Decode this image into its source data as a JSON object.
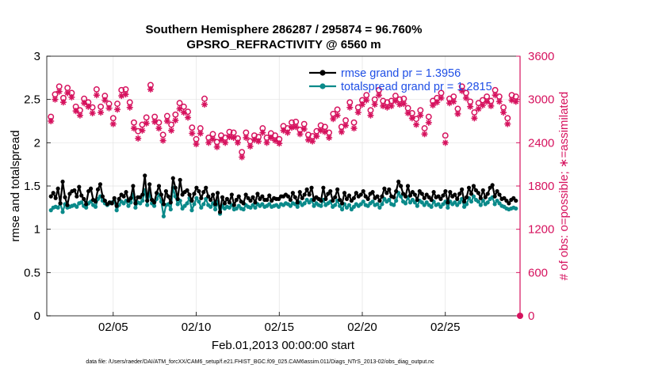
{
  "chart_data": {
    "type": "line",
    "title": "Southern Hemisphere 286287 / 295874 = 96.760%",
    "subtitle": "GPSRO_REFRACTIVITY @ 6560 m",
    "xlabel": "Feb.01,2013 00:00:00 start",
    "ylabel_left": "rmse and totalspread",
    "ylabel_right": "# of obs: o=possible; ∗=assimilated",
    "footer": "data file: /Users/raeder/DAI/ATM_forcXX/CAM6_setup/f.e21.FHIST_BGC.f09_025.CAM6assim.011/Diags_NTrS_2013-02/obs_diag_output.nc",
    "x_range_days": [
      1,
      29.5
    ],
    "x_ticks": [
      {
        "day": 5,
        "label": "02/05"
      },
      {
        "day": 10,
        "label": "02/10"
      },
      {
        "day": 15,
        "label": "02/15"
      },
      {
        "day": 20,
        "label": "02/20"
      },
      {
        "day": 25,
        "label": "02/25"
      }
    ],
    "ylim_left": [
      0,
      3
    ],
    "y_ticks_left": [
      "0",
      "0.5",
      "1",
      "1.5",
      "2",
      "2.5",
      "3"
    ],
    "ylim_right": [
      0,
      3600
    ],
    "y_ticks_right": [
      "0",
      "600",
      "1200",
      "1800",
      "2400",
      "3000",
      "3600"
    ],
    "grid": true,
    "legend_position": "top-right",
    "colors": {
      "rmse": "#000000",
      "totalspread": "#0a8a8a",
      "obs": "#d6125e",
      "legend_text": "#1f4fe6"
    },
    "series": [
      {
        "name": "rmse grand pr = 1.3956",
        "axis": "left",
        "values": [
          1.38,
          1.42,
          1.36,
          1.47,
          1.3,
          1.55,
          1.37,
          1.28,
          1.41,
          1.44,
          1.45,
          1.38,
          1.49,
          1.39,
          1.35,
          1.29,
          1.44,
          1.47,
          1.34,
          1.32,
          1.46,
          1.52,
          1.38,
          1.33,
          1.29,
          1.31,
          1.3,
          1.36,
          1.27,
          1.35,
          1.4,
          1.38,
          1.43,
          1.33,
          1.36,
          1.5,
          1.3,
          1.37,
          1.37,
          1.4,
          1.62,
          1.33,
          1.52,
          1.34,
          1.31,
          1.42,
          1.5,
          1.4,
          1.29,
          1.44,
          1.38,
          1.31,
          1.59,
          1.48,
          1.35,
          1.57,
          1.4,
          1.43,
          1.45,
          1.4,
          1.33,
          1.41,
          1.48,
          1.44,
          1.36,
          1.43,
          1.48,
          1.38,
          1.34,
          1.4,
          1.29,
          1.42,
          1.2,
          1.37,
          1.3,
          1.35,
          1.31,
          1.4,
          1.28,
          1.34,
          1.38,
          1.32,
          1.3,
          1.4,
          1.36,
          1.33,
          1.37,
          1.31,
          1.41,
          1.35,
          1.38,
          1.34,
          1.34,
          1.39,
          1.33,
          1.36,
          1.35,
          1.35,
          1.38,
          1.38,
          1.4,
          1.38,
          1.34,
          1.42,
          1.37,
          1.31,
          1.43,
          1.36,
          1.4,
          1.46,
          1.4,
          1.48,
          1.34,
          1.37,
          1.35,
          1.33,
          1.48,
          1.35,
          1.41,
          1.44,
          1.33,
          1.37,
          1.46,
          1.34,
          1.3,
          1.42,
          1.35,
          1.39,
          1.33,
          1.36,
          1.42,
          1.38,
          1.4,
          1.44,
          1.38,
          1.35,
          1.41,
          1.43,
          1.36,
          1.38,
          1.33,
          1.38,
          1.47,
          1.42,
          1.46,
          1.38,
          1.37,
          1.44,
          1.55,
          1.5,
          1.41,
          1.38,
          1.5,
          1.39,
          1.43,
          1.4,
          1.34,
          1.44,
          1.41,
          1.36,
          1.4,
          1.37,
          1.34,
          1.43,
          1.37,
          1.38,
          1.35,
          1.39,
          1.44,
          1.31,
          1.43,
          1.38,
          1.4,
          1.35,
          1.41,
          1.46,
          1.32,
          1.37,
          1.48,
          1.41,
          1.5,
          1.45,
          1.42,
          1.36,
          1.45,
          1.37,
          1.41,
          1.48,
          1.51,
          1.38,
          1.44,
          1.4,
          1.35,
          1.36,
          1.33,
          1.3,
          1.34,
          1.36,
          1.33
        ]
      },
      {
        "name": "totalspread grand pr = 1.2815",
        "axis": "left",
        "values": [
          1.22,
          1.25,
          1.26,
          1.25,
          1.3,
          1.2,
          1.29,
          1.25,
          1.26,
          1.27,
          1.28,
          1.26,
          1.3,
          1.31,
          1.27,
          1.25,
          1.3,
          1.32,
          1.28,
          1.26,
          1.35,
          1.38,
          1.33,
          1.3,
          1.28,
          1.3,
          1.31,
          1.33,
          1.22,
          1.28,
          1.32,
          1.3,
          1.33,
          1.27,
          1.31,
          1.4,
          1.25,
          1.31,
          1.3,
          1.33,
          1.45,
          1.28,
          1.42,
          1.3,
          1.27,
          1.35,
          1.4,
          1.32,
          1.15,
          1.28,
          1.29,
          1.23,
          1.48,
          1.38,
          1.29,
          1.33,
          1.24,
          1.27,
          1.3,
          1.36,
          1.22,
          1.29,
          1.36,
          1.32,
          1.25,
          1.29,
          1.35,
          1.28,
          1.26,
          1.3,
          1.23,
          1.32,
          1.18,
          1.27,
          1.24,
          1.26,
          1.25,
          1.28,
          1.23,
          1.24,
          1.27,
          1.24,
          1.23,
          1.28,
          1.26,
          1.25,
          1.28,
          1.25,
          1.29,
          1.27,
          1.29,
          1.26,
          1.27,
          1.29,
          1.26,
          1.27,
          1.28,
          1.26,
          1.29,
          1.28,
          1.3,
          1.29,
          1.27,
          1.3,
          1.29,
          1.26,
          1.31,
          1.28,
          1.3,
          1.34,
          1.31,
          1.34,
          1.27,
          1.3,
          1.28,
          1.27,
          1.34,
          1.28,
          1.3,
          1.32,
          1.26,
          1.28,
          1.33,
          1.27,
          1.23,
          1.29,
          1.25,
          1.28,
          1.23,
          1.26,
          1.29,
          1.27,
          1.29,
          1.32,
          1.28,
          1.27,
          1.3,
          1.32,
          1.28,
          1.29,
          1.25,
          1.29,
          1.35,
          1.32,
          1.34,
          1.29,
          1.28,
          1.33,
          1.42,
          1.38,
          1.32,
          1.3,
          1.37,
          1.31,
          1.34,
          1.31,
          1.27,
          1.33,
          1.31,
          1.28,
          1.31,
          1.28,
          1.26,
          1.32,
          1.28,
          1.29,
          1.26,
          1.29,
          1.32,
          1.25,
          1.32,
          1.29,
          1.31,
          1.28,
          1.31,
          1.35,
          1.26,
          1.29,
          1.36,
          1.32,
          1.38,
          1.34,
          1.32,
          1.28,
          1.33,
          1.29,
          1.31,
          1.35,
          1.37,
          1.29,
          1.33,
          1.3,
          1.27,
          1.26,
          1.24,
          1.23,
          1.24,
          1.25,
          1.24
        ]
      },
      {
        "name": "obs possible",
        "axis": "right",
        "marker": "circle",
        "values": [
          2760,
          3070,
          3180,
          3020,
          3160,
          3090,
          2900,
          2850,
          3010,
          2960,
          2890,
          3140,
          2900,
          3050,
          2940,
          2740,
          2940,
          3130,
          3140,
          2960,
          2680,
          2560,
          2650,
          2750,
          3200,
          2760,
          2680,
          2510,
          2770,
          2650,
          2790,
          2950,
          2900,
          2830,
          2610,
          2450,
          2600,
          3010,
          2470,
          2520,
          2410,
          2500,
          2470,
          2550,
          2540,
          2460,
          2270,
          2540,
          2420,
          2500,
          2480,
          2600,
          2470,
          2530,
          2500,
          2450,
          2630,
          2600,
          2680,
          2690,
          2580,
          2660,
          2510,
          2490,
          2560,
          2640,
          2620,
          2540,
          2800,
          2860,
          2620,
          2710,
          2960,
          2680,
          2890,
          2990,
          3060,
          2850,
          3000,
          3130,
          2980,
          2960,
          2980,
          3050,
          3000,
          3010,
          2880,
          2810,
          2730,
          2850,
          2600,
          2760,
          2980,
          3020,
          3090,
          2500,
          3010,
          3040,
          2870,
          3180,
          3090,
          2970,
          2820,
          2950,
          2990,
          3040,
          2980,
          3130,
          3040,
          2890,
          2740,
          3060,
          3040
        ]
      },
      {
        "name": "obs assimilated",
        "axis": "right",
        "marker": "asterisk",
        "values": [
          2700,
          3000,
          3110,
          2960,
          3090,
          3030,
          2840,
          2780,
          2950,
          2900,
          2810,
          3060,
          2820,
          2990,
          2880,
          2660,
          2860,
          3050,
          3070,
          2890,
          2600,
          2460,
          2570,
          2670,
          3140,
          2690,
          2600,
          2430,
          2700,
          2570,
          2710,
          2870,
          2820,
          2750,
          2530,
          2380,
          2530,
          2930,
          2400,
          2450,
          2340,
          2440,
          2400,
          2480,
          2470,
          2400,
          2200,
          2470,
          2350,
          2440,
          2420,
          2540,
          2400,
          2470,
          2430,
          2390,
          2570,
          2540,
          2610,
          2620,
          2520,
          2590,
          2440,
          2420,
          2490,
          2570,
          2550,
          2470,
          2730,
          2780,
          2550,
          2640,
          2890,
          2600,
          2820,
          2930,
          2990,
          2780,
          2930,
          3060,
          2910,
          2890,
          2910,
          2980,
          2930,
          2940,
          2810,
          2740,
          2650,
          2780,
          2520,
          2680,
          2920,
          2960,
          3020,
          2400,
          2950,
          2970,
          2800,
          3120,
          3020,
          2900,
          2740,
          2870,
          2920,
          2970,
          2910,
          3060,
          2970,
          2820,
          2660,
          2990,
          2970
        ]
      }
    ]
  }
}
